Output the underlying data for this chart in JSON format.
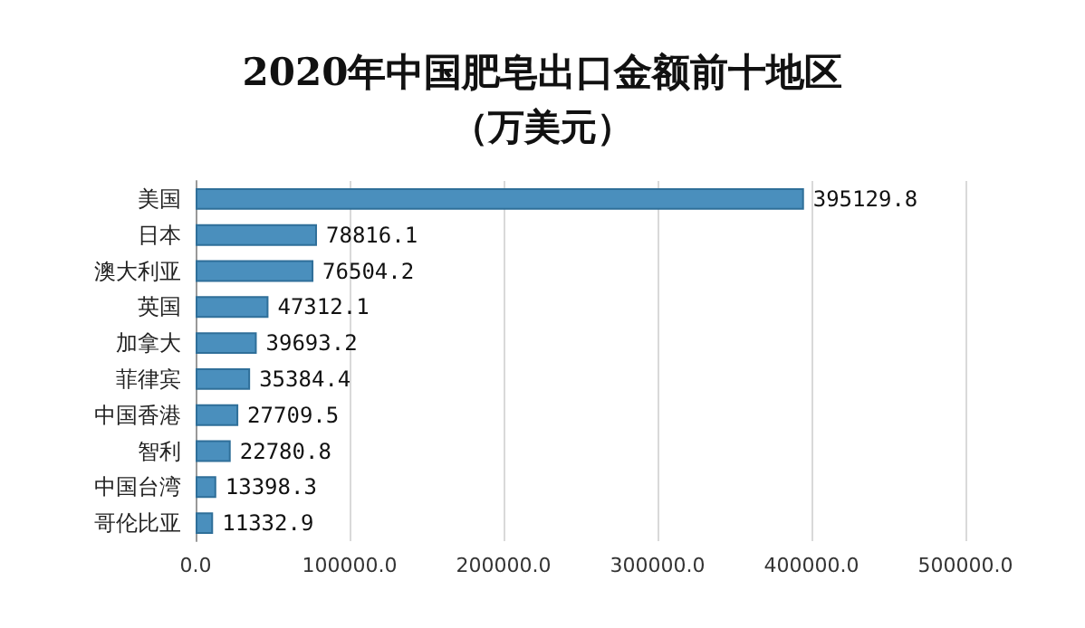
{
  "chart_data": {
    "type": "bar",
    "orientation": "horizontal",
    "title": "2020年中国肥皂出口金额前十地区",
    "subtitle": "（万美元）",
    "categories": [
      "美国",
      "日本",
      "澳大利亚",
      "英国",
      "加拿大",
      "菲律宾",
      "中国香港",
      "智利",
      "中国台湾",
      "哥伦比亚"
    ],
    "values": [
      395129.8,
      78816.1,
      76504.2,
      47312.1,
      39693.2,
      35384.4,
      27709.5,
      22780.8,
      13398.3,
      11332.9
    ],
    "color": "#4a8fbd",
    "xlim": [
      0,
      500000
    ],
    "xticks": [
      {
        "value": 0,
        "label": "0.0"
      },
      {
        "value": 100000,
        "label": "100000.0"
      },
      {
        "value": 200000,
        "label": "200000.0"
      },
      {
        "value": 300000,
        "label": "300000.0"
      },
      {
        "value": 400000,
        "label": "400000.0"
      },
      {
        "value": 500000,
        "label": "500000.0"
      }
    ],
    "grid": "x",
    "data_labels": true
  }
}
